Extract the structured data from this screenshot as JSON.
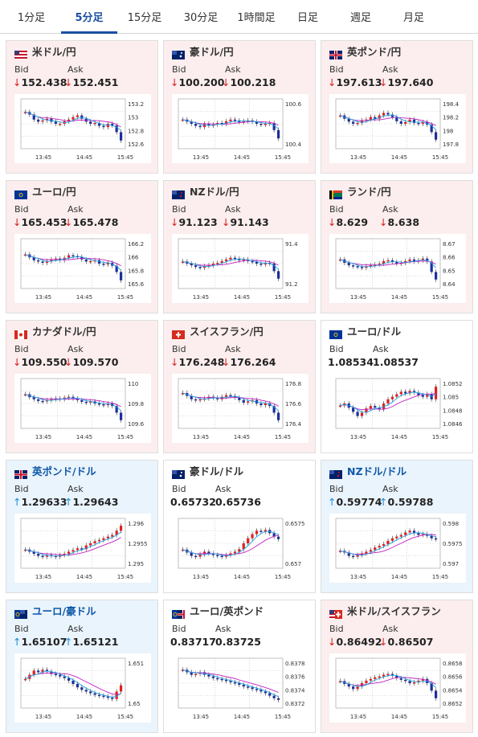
{
  "tabs": [
    "1分足",
    "5分足",
    "15分足",
    "30分足",
    "1時間足",
    "日足",
    "週足",
    "月足"
  ],
  "active_tab": 1,
  "labels": {
    "bid": "Bid",
    "ask": "Ask"
  },
  "cards": [
    {
      "pair": "米ドル/円",
      "flag": "us",
      "dir": "down",
      "bid": "152.438",
      "ask": "152.451",
      "yticks": [
        "153.2",
        "153",
        "152.8",
        "152.6"
      ],
      "xticks": [
        "13:45",
        "14:45",
        "15:45"
      ],
      "trend": [
        0.78,
        0.72,
        0.6,
        0.55,
        0.58,
        0.62,
        0.55,
        0.5,
        0.5,
        0.56,
        0.6,
        0.66,
        0.7,
        0.62,
        0.55,
        0.5,
        0.52,
        0.45,
        0.42,
        0.5,
        0.46,
        0.3,
        0.1
      ]
    },
    {
      "pair": "豪ドル/円",
      "flag": "au",
      "dir": "down",
      "bid": "100.200",
      "ask": "100.218",
      "yticks": [
        "100.6",
        "100.4"
      ],
      "xticks": [
        "13:45",
        "14:45",
        "15:45"
      ],
      "trend": [
        0.6,
        0.55,
        0.5,
        0.45,
        0.42,
        0.5,
        0.46,
        0.48,
        0.52,
        0.5,
        0.56,
        0.6,
        0.58,
        0.54,
        0.56,
        0.58,
        0.55,
        0.5,
        0.48,
        0.5,
        0.52,
        0.35,
        0.15
      ]
    },
    {
      "pair": "英ポンド/円",
      "flag": "gb",
      "dir": "down",
      "bid": "197.613",
      "ask": "197.640",
      "yticks": [
        "198.4",
        "198.2",
        "198",
        "197.8"
      ],
      "xticks": [
        "13:45",
        "14:45",
        "15:45"
      ],
      "trend": [
        0.7,
        0.62,
        0.55,
        0.5,
        0.52,
        0.58,
        0.6,
        0.66,
        0.62,
        0.7,
        0.76,
        0.72,
        0.66,
        0.56,
        0.5,
        0.54,
        0.6,
        0.52,
        0.5,
        0.54,
        0.48,
        0.3,
        0.12
      ]
    },
    {
      "pair": "ユーロ/円",
      "flag": "eu",
      "dir": "down",
      "bid": "165.453",
      "ask": "165.478",
      "yticks": [
        "166.2",
        "166",
        "165.8",
        "165.6"
      ],
      "xticks": [
        "13:45",
        "14:45",
        "15:45"
      ],
      "trend": [
        0.72,
        0.65,
        0.58,
        0.55,
        0.52,
        0.56,
        0.6,
        0.62,
        0.58,
        0.64,
        0.7,
        0.68,
        0.66,
        0.6,
        0.55,
        0.56,
        0.58,
        0.5,
        0.48,
        0.52,
        0.45,
        0.3,
        0.1
      ]
    },
    {
      "pair": "NZドル/円",
      "flag": "nz",
      "dir": "down",
      "bid": "91.123",
      "ask": "91.143",
      "yticks": [
        "91.4",
        "91.2"
      ],
      "xticks": [
        "13:45",
        "14:45",
        "15:45"
      ],
      "trend": [
        0.55,
        0.5,
        0.46,
        0.42,
        0.4,
        0.44,
        0.46,
        0.5,
        0.52,
        0.56,
        0.6,
        0.64,
        0.62,
        0.58,
        0.6,
        0.56,
        0.54,
        0.5,
        0.48,
        0.52,
        0.5,
        0.32,
        0.14
      ]
    },
    {
      "pair": "ランド/円",
      "flag": "za",
      "dir": "down",
      "bid": "8.629",
      "ask": "8.638",
      "yticks": [
        "8.67",
        "8.66",
        "8.65",
        "8.64"
      ],
      "xticks": [
        "13:45",
        "14:45",
        "15:45"
      ],
      "trend": [
        0.6,
        0.52,
        0.46,
        0.44,
        0.42,
        0.4,
        0.44,
        0.46,
        0.48,
        0.5,
        0.56,
        0.58,
        0.54,
        0.5,
        0.52,
        0.56,
        0.6,
        0.55,
        0.58,
        0.62,
        0.55,
        0.3,
        0.12
      ]
    },
    {
      "pair": "カナダドル/円",
      "flag": "ca",
      "dir": "down",
      "bid": "109.550",
      "ask": "109.570",
      "yticks": [
        "110",
        "109.8",
        "109.6"
      ],
      "xticks": [
        "13:45",
        "14:45",
        "15:45"
      ],
      "trend": [
        0.72,
        0.65,
        0.6,
        0.56,
        0.55,
        0.58,
        0.6,
        0.62,
        0.6,
        0.64,
        0.66,
        0.62,
        0.58,
        0.54,
        0.52,
        0.55,
        0.5,
        0.48,
        0.46,
        0.5,
        0.44,
        0.28,
        0.1
      ]
    },
    {
      "pair": "スイスフラン/円",
      "flag": "ch",
      "dir": "down",
      "bid": "176.248",
      "ask": "176.264",
      "yticks": [
        "176.8",
        "176.6",
        "176.4"
      ],
      "xticks": [
        "13:45",
        "14:45",
        "15:45"
      ],
      "trend": [
        0.75,
        0.68,
        0.6,
        0.58,
        0.6,
        0.62,
        0.66,
        0.64,
        0.6,
        0.66,
        0.7,
        0.68,
        0.64,
        0.58,
        0.52,
        0.55,
        0.58,
        0.5,
        0.46,
        0.5,
        0.44,
        0.28,
        0.1
      ]
    },
    {
      "pair": "ユーロ/ドル",
      "flag": "eu",
      "dir": "flat",
      "bid": "1.08534",
      "ask": "1.08537",
      "yticks": [
        "1.0852",
        "1.085",
        "1.0848",
        "1.0846"
      ],
      "xticks": [
        "13:45",
        "14:45",
        "15:45"
      ],
      "trend": [
        0.45,
        0.5,
        0.4,
        0.3,
        0.2,
        0.28,
        0.38,
        0.44,
        0.4,
        0.36,
        0.5,
        0.6,
        0.66,
        0.72,
        0.78,
        0.74,
        0.8,
        0.76,
        0.7,
        0.66,
        0.72,
        0.6,
        0.9
      ]
    },
    {
      "pair": "英ポンド/ドル",
      "flag": "gb",
      "dir": "up",
      "bid": "1.29633",
      "ask": "1.29643",
      "yticks": [
        "1.296",
        "1.2955",
        "1.295"
      ],
      "xticks": [
        "13:45",
        "14:45",
        "15:45"
      ],
      "trend": [
        0.35,
        0.3,
        0.25,
        0.2,
        0.18,
        0.22,
        0.2,
        0.18,
        0.22,
        0.25,
        0.3,
        0.34,
        0.38,
        0.36,
        0.45,
        0.5,
        0.55,
        0.58,
        0.62,
        0.66,
        0.7,
        0.8,
        0.92
      ]
    },
    {
      "pair": "豪ドル/ドル",
      "flag": "au",
      "dir": "flat",
      "bid": "0.65732",
      "ask": "0.65736",
      "yticks": [
        "0.6575",
        "0.657"
      ],
      "xticks": [
        "13:45",
        "14:45",
        "15:45"
      ],
      "trend": [
        0.35,
        0.28,
        0.2,
        0.18,
        0.24,
        0.3,
        0.26,
        0.22,
        0.2,
        0.18,
        0.22,
        0.26,
        0.3,
        0.36,
        0.5,
        0.62,
        0.72,
        0.8,
        0.78,
        0.82,
        0.74,
        0.66,
        0.6
      ]
    },
    {
      "pair": "NZドル/ドル",
      "flag": "nz",
      "dir": "up",
      "bid": "0.59774",
      "ask": "0.59788",
      "yticks": [
        "0.598",
        "0.5975",
        "0.597"
      ],
      "xticks": [
        "13:45",
        "14:45",
        "15:45"
      ],
      "trend": [
        0.32,
        0.28,
        0.2,
        0.18,
        0.22,
        0.26,
        0.3,
        0.34,
        0.4,
        0.44,
        0.48,
        0.56,
        0.62,
        0.66,
        0.7,
        0.76,
        0.8,
        0.74,
        0.7,
        0.72,
        0.68,
        0.62,
        0.6
      ]
    },
    {
      "pair": "ユーロ/豪ドル",
      "flag": "euau",
      "dir": "up",
      "bid": "1.65107",
      "ask": "1.65121",
      "yticks": [
        "1.651",
        "1.65"
      ],
      "xticks": [
        "13:45",
        "14:45",
        "15:45"
      ],
      "trend": [
        0.6,
        0.7,
        0.8,
        0.76,
        0.82,
        0.78,
        0.72,
        0.7,
        0.66,
        0.62,
        0.56,
        0.48,
        0.4,
        0.34,
        0.3,
        0.26,
        0.22,
        0.2,
        0.18,
        0.15,
        0.12,
        0.3,
        0.45
      ]
    },
    {
      "pair": "ユーロ/英ポンド",
      "flag": "eugb",
      "dir": "flat",
      "bid": "0.83717",
      "ask": "0.83725",
      "yticks": [
        "0.8378",
        "0.8376",
        "0.8374",
        "0.8372"
      ],
      "xticks": [
        "13:45",
        "14:45",
        "15:45"
      ],
      "trend": [
        0.82,
        0.76,
        0.7,
        0.72,
        0.76,
        0.7,
        0.66,
        0.62,
        0.6,
        0.58,
        0.55,
        0.52,
        0.5,
        0.46,
        0.42,
        0.4,
        0.36,
        0.34,
        0.3,
        0.26,
        0.2,
        0.14,
        0.1
      ]
    },
    {
      "pair": "米ドル/スイスフラン",
      "flag": "usch",
      "dir": "down",
      "bid": "0.86492",
      "ask": "0.86507",
      "yticks": [
        "0.8658",
        "0.8656",
        "0.8654",
        "0.8652"
      ],
      "xticks": [
        "13:45",
        "14:45",
        "15:45"
      ],
      "trend": [
        0.55,
        0.48,
        0.42,
        0.36,
        0.42,
        0.5,
        0.56,
        0.6,
        0.64,
        0.66,
        0.7,
        0.72,
        0.68,
        0.62,
        0.58,
        0.55,
        0.5,
        0.52,
        0.56,
        0.6,
        0.5,
        0.32,
        0.14
      ]
    }
  ]
}
